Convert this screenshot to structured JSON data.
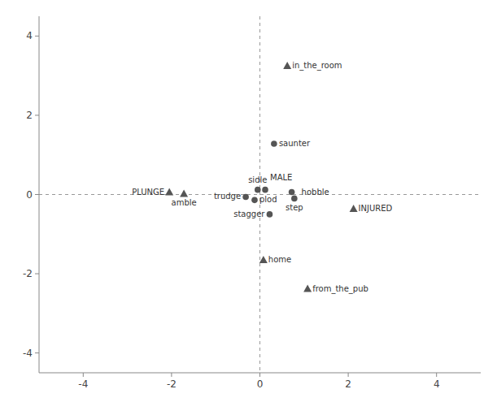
{
  "chart_data": {
    "type": "scatter",
    "series": [
      {
        "marker": "circle",
        "color": "#555555",
        "x": [
          -0.05,
          0.12,
          0.32,
          0.72,
          0.78,
          -0.32,
          -0.12,
          0.22
        ],
        "values": [
          0.12,
          0.12,
          1.28,
          0.06,
          -0.1,
          -0.06,
          -0.14,
          -0.5
        ],
        "labels": [
          "sidle",
          "MALE",
          "saunter",
          "hobble",
          "step",
          "trudge",
          "plod",
          "stagger"
        ]
      },
      {
        "marker": "triangle",
        "color": "#555555",
        "x": [
          0.62,
          -2.05,
          -1.72,
          2.12,
          0.08,
          1.08
        ],
        "values": [
          3.25,
          0.06,
          0.02,
          -0.36,
          -1.65,
          -2.38
        ],
        "labels": [
          "in_the_room",
          "PLUNGE",
          "amble",
          "INJURED",
          "home",
          "from_the_pub"
        ]
      }
    ],
    "xlim": [
      -5,
      5
    ],
    "ylim": [
      -4.5,
      4.5
    ],
    "xticks": [
      -4,
      -2,
      0,
      2,
      4
    ],
    "yticks": [
      -4,
      -2,
      0,
      2,
      4
    ],
    "grid": false
  }
}
